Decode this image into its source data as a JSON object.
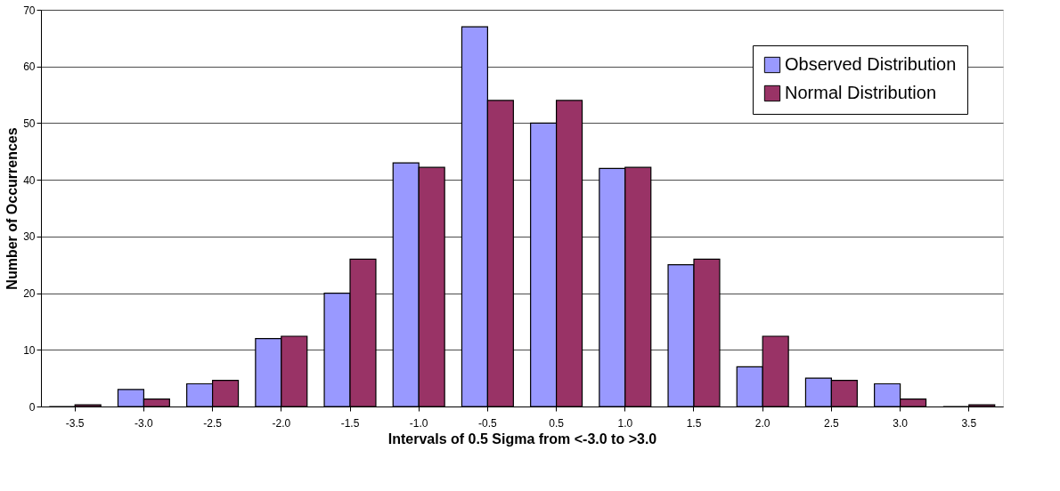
{
  "chart_data": {
    "type": "bar",
    "xlabel": "Intervals of 0.5 Sigma from <-3.0 to >3.0",
    "ylabel": "Number of Occurrences",
    "categories": [
      "-3.5",
      "-3.0",
      "-2.5",
      "-2.0",
      "-1.5",
      "-1.0",
      "-0.5",
      "0.5",
      "1.0",
      "1.5",
      "2.0",
      "2.5",
      "3.0",
      "3.5"
    ],
    "series": [
      {
        "name": "Observed Distribution",
        "color": "#9999ff",
        "values": [
          0,
          3,
          4,
          12,
          20,
          43,
          67,
          50,
          42,
          25,
          7,
          5,
          4,
          0
        ]
      },
      {
        "name": "Normal Distribution",
        "color": "#993366",
        "values": [
          0.3,
          1.3,
          4.6,
          12.4,
          26,
          42.2,
          54,
          54,
          42.2,
          26,
          12.4,
          4.6,
          1.3,
          0.3
        ]
      }
    ],
    "ylim": [
      0,
      70
    ],
    "yticks": [
      0,
      10,
      20,
      30,
      40,
      50,
      60,
      70
    ],
    "grid": "y",
    "legend": "top right"
  }
}
